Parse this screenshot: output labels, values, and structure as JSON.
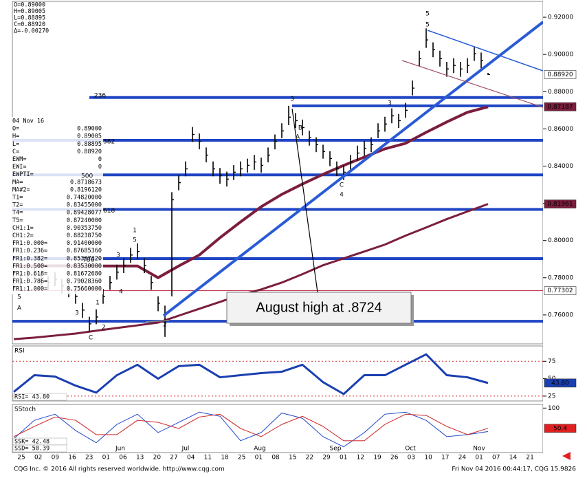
{
  "chart_data": [
    {
      "type": "ohlc",
      "header_lines": [
        "O=0.89000",
        "H=0.89005",
        "L=0.88895",
        "C=0.88920",
        "Δ=-0.00270"
      ],
      "color": "#000000",
      "high": [
        0.783,
        0.7815,
        0.785,
        0.7855,
        0.783,
        0.781,
        0.783,
        0.7795,
        0.7775,
        0.774,
        0.7665,
        0.759,
        0.763,
        0.774,
        0.781,
        0.787,
        0.7905,
        0.796,
        0.7985,
        0.7905,
        0.781,
        0.77,
        0.765,
        0.826,
        0.835,
        0.8425,
        0.861,
        0.8575,
        0.85,
        0.8425,
        0.839,
        0.837,
        0.8405,
        0.8425,
        0.844,
        0.846,
        0.8445,
        0.85,
        0.857,
        0.863,
        0.8724,
        0.8685,
        0.865,
        0.859,
        0.8555,
        0.8515,
        0.848,
        0.8425,
        0.8405,
        0.846,
        0.851,
        0.8535,
        0.8555,
        0.863,
        0.8665,
        0.871,
        0.868,
        0.874,
        0.886,
        0.902,
        0.914,
        0.9065,
        0.902,
        0.896,
        0.898,
        0.896,
        0.898,
        0.9043,
        0.901,
        0.89005
      ],
      "low": [
        0.7755,
        0.7735,
        0.777,
        0.778,
        0.7755,
        0.7735,
        0.7755,
        0.7715,
        0.7695,
        0.766,
        0.7585,
        0.751,
        0.755,
        0.766,
        0.7735,
        0.779,
        0.7825,
        0.788,
        0.79,
        0.7825,
        0.7735,
        0.762,
        0.7482,
        0.77,
        0.827,
        0.8345,
        0.853,
        0.849,
        0.842,
        0.8345,
        0.8305,
        0.829,
        0.8325,
        0.8345,
        0.8365,
        0.838,
        0.8365,
        0.842,
        0.849,
        0.855,
        0.862,
        0.8605,
        0.8565,
        0.851,
        0.8475,
        0.844,
        0.84,
        0.8346,
        0.8325,
        0.838,
        0.843,
        0.8455,
        0.8475,
        0.855,
        0.8585,
        0.863,
        0.8605,
        0.866,
        0.878,
        0.8935,
        0.9035,
        0.8985,
        0.8935,
        0.888,
        0.89,
        0.888,
        0.89,
        0.8965,
        0.8925,
        0.88895
      ],
      "close": [
        0.7793,
        0.7774,
        0.7811,
        0.7819,
        0.7793,
        0.7774,
        0.7793,
        0.7756,
        0.7737,
        0.77,
        0.7626,
        0.7552,
        0.7589,
        0.77,
        0.7774,
        0.783,
        0.7867,
        0.7922,
        0.7941,
        0.7867,
        0.7774,
        0.7663,
        0.7607,
        0.8219,
        0.8311,
        0.8385,
        0.857,
        0.8533,
        0.8459,
        0.8385,
        0.8348,
        0.833,
        0.8367,
        0.8385,
        0.8404,
        0.8422,
        0.8404,
        0.8459,
        0.8533,
        0.8589,
        0.8663,
        0.8644,
        0.8607,
        0.8552,
        0.8515,
        0.8478,
        0.8441,
        0.8385,
        0.8367,
        0.8422,
        0.847,
        0.8496,
        0.8515,
        0.8589,
        0.8626,
        0.867,
        0.8644,
        0.87,
        0.8819,
        0.8978,
        0.9078,
        0.9026,
        0.8978,
        0.8922,
        0.8941,
        0.8922,
        0.8941,
        0.9004,
        0.8967,
        0.8892
      ],
      "overlays": [
        {
          "color": "#7b1e3e",
          "values": [
            0.78641,
            0.7863,
            0.78641,
            0.78641,
            0.7863,
            0.7863,
            0.7863,
            0.78,
            0.7863,
            0.79222,
            0.80148,
            0.81,
            0.81815,
            0.82481,
            0.83037,
            0.83556,
            0.84037,
            0.84481,
            0.84926,
            0.85222,
            0.85815,
            0.8637,
            0.86889,
            0.87187
          ]
        },
        {
          "color": "#7b1e3e",
          "values": [
            0.747,
            0.7478,
            0.7489,
            0.75,
            0.7515,
            0.753,
            0.7544,
            0.7559,
            0.7596,
            0.7633,
            0.767,
            0.7707,
            0.7737,
            0.7774,
            0.7819,
            0.7867,
            0.7904,
            0.7941,
            0.7978,
            0.8026,
            0.807,
            0.8115,
            0.8156,
            0.81961
          ]
        }
      ],
      "ylim": [
        0.74444,
        0.92852
      ],
      "yticks": [
        {
          "value": 0.92,
          "label": "0.92000"
        },
        {
          "value": 0.9,
          "label": "0.90000"
        },
        {
          "value": 0.88,
          "label": "0.88000"
        },
        {
          "value": 0.86,
          "label": "0.86000"
        },
        {
          "value": 0.84,
          "label": "0.84000"
        },
        {
          "value": 0.82,
          "label": "0.82000"
        },
        {
          "value": 0.8,
          "label": "0.80000"
        },
        {
          "value": 0.78,
          "label": "0.78000"
        },
        {
          "value": 0.76,
          "label": "0.76000"
        }
      ],
      "levels": [
        {
          "value": 0.8768536,
          "label": ".236"
        },
        {
          "value": 0.8724
        },
        {
          "value": 0.8538732,
          "label": "382"
        },
        {
          "value": 0.8353,
          "label": "500"
        },
        {
          "value": 0.8167268,
          "label": "618"
        },
        {
          "value": 0.7902836,
          "label": "786"
        },
        {
          "value": 0.7566
        }
      ],
      "level_color": "#1f45c4",
      "red_level": 0.77302,
      "price_markers": [
        {
          "value": 0.8892,
          "label": "0.88920",
          "color": "#000000",
          "bg": "#ffffff"
        },
        {
          "value": 0.87187,
          "label": "0.87187",
          "color": "#ffffff",
          "bg": "#7b1e3e"
        },
        {
          "value": 0.81961,
          "label": "0.81961",
          "color": "#ffffff",
          "bg": "#7b1e3e"
        },
        {
          "value": 0.77302,
          "label": "0.77302",
          "color": "#000000",
          "bg": "#ffffff"
        }
      ],
      "wave_labels": [
        {
          "text": "5",
          "color": "#1a2d9c"
        },
        {
          "text": "5",
          "color": "#2a4ad0"
        },
        {
          "text": "3",
          "color": "#1a2d9c"
        },
        {
          "text": "3",
          "color": "#2a4ad0"
        },
        {
          "text": "4",
          "color": "#1a2d9c"
        },
        {
          "text": "1",
          "color": "#1a2d9c"
        },
        {
          "text": "5",
          "color": "#2a4ad0"
        },
        {
          "text": "3",
          "color": "#2a4ad0"
        },
        {
          "text": "4",
          "color": "#2a4ad0"
        },
        {
          "text": "2",
          "color": "#1a2d9c"
        },
        {
          "text": "1",
          "color": "#2a4ad0"
        },
        {
          "text": "2",
          "color": "#2a4ad0"
        },
        {
          "text": "3",
          "color": "#2a4ad0"
        },
        {
          "text": "5",
          "color": "#2a4ad0"
        },
        {
          "text": "A",
          "color": "#d02020"
        },
        {
          "text": "C",
          "color": "#8a2050"
        },
        {
          "text": "B",
          "color": "#d02020"
        },
        {
          "text": "A",
          "color": "#d02020"
        },
        {
          "text": "C",
          "color": "#8a2050"
        }
      ],
      "callout": "August high at .8724"
    },
    {
      "type": "line",
      "title": "RSI",
      "readouts": [
        "RSI= 43.80"
      ],
      "series": [
        {
          "color": "#1a3fb0",
          "values": [
            31,
            55,
            53,
            40,
            30,
            55,
            70,
            50,
            68,
            70,
            52,
            55,
            58,
            60,
            70,
            45,
            28,
            55,
            55,
            70,
            85,
            55,
            52,
            43.8
          ]
        }
      ],
      "ylim": [
        18,
        97
      ],
      "yticks": [
        75,
        50,
        25
      ],
      "ref_lines": [
        75,
        25
      ],
      "markers": [
        {
          "value": 43.8,
          "label": "43.80",
          "color": "#ffffff",
          "bg": "#1a3fb0"
        }
      ]
    },
    {
      "type": "line",
      "title": "SStoch",
      "readouts": [
        "SSK= 42.48",
        "SSD= 50.39"
      ],
      "series": [
        {
          "color": "#3355cc",
          "values": [
            25,
            70,
            85,
            45,
            15,
            60,
            85,
            40,
            65,
            90,
            80,
            20,
            40,
            88,
            75,
            30,
            5,
            40,
            85,
            90,
            70,
            30,
            35,
            42.48
          ]
        },
        {
          "color": "#d03333",
          "values": [
            30,
            55,
            78,
            70,
            35,
            35,
            70,
            65,
            50,
            78,
            85,
            50,
            30,
            60,
            80,
            55,
            20,
            20,
            60,
            85,
            82,
            55,
            35,
            50.39
          ]
        }
      ],
      "ylim": [
        -9,
        109
      ],
      "yticks": [
        100
      ],
      "markers": [
        {
          "value": 50.39,
          "label": "50.4",
          "color": "#ffffff",
          "bg": "#e02020"
        }
      ]
    }
  ],
  "x_axis": {
    "labels": [
      "25",
      "02",
      "09",
      "16",
      "23",
      "01",
      "06",
      "13",
      "20",
      "27",
      "04",
      "11",
      "18",
      "25",
      "01",
      "08",
      "15",
      "22",
      "29",
      "01",
      "12",
      "19",
      "26",
      "03",
      "10",
      "17",
      "24",
      "01",
      "07",
      "14",
      "21"
    ],
    "months": [
      "Jun",
      "Jul",
      "Aug",
      "Sep",
      "Oct",
      "Nov"
    ]
  },
  "data_window": {
    "rows": [
      [
        "04 Nov 16"
      ],
      [
        "O=",
        "0.89000"
      ],
      [
        "H=",
        "0.89005"
      ],
      [
        "L=",
        "0.88895"
      ],
      [
        "C=",
        "0.88920"
      ],
      [
        "EWM=",
        "0"
      ],
      [
        "EWI=",
        "0"
      ],
      [
        "EWPTI="
      ],
      [
        "MA=",
        "0.8718673"
      ],
      [
        "MA#2=",
        "0.8196120"
      ],
      [
        "T1=",
        "0.74820000"
      ],
      [
        "T2=",
        "0.83455000"
      ],
      [
        "T4=",
        "0.89428077"
      ],
      [
        "T5=",
        "0.87240000"
      ],
      [
        "CH1:1=",
        "0.90353750"
      ],
      [
        "CH1:2=",
        "0.88238750"
      ],
      [
        "FR1:0.000=",
        "0.91400000"
      ],
      [
        "FR1:0.236=",
        "0.87685360"
      ],
      [
        "FR1:0.382=",
        "0.85387320"
      ],
      [
        "FR1:0.500=",
        "0.83530000"
      ],
      [
        "FR1:0.618=",
        "0.81672680"
      ],
      [
        "FR1:0.786=",
        "0.79028360"
      ],
      [
        "FR1:1.000=",
        "0.75660000"
      ]
    ]
  },
  "footer": {
    "left": "CQG Inc. © 2016 All rights reserved worldwide. http://www.cqg.com",
    "right": "Fri Nov 04 2016 00:44:17, CQG 15.9826"
  }
}
